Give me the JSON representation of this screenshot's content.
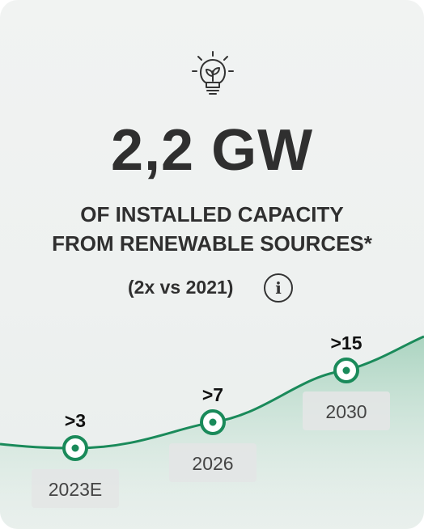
{
  "headline": "2,2 GW",
  "subtitle_line1": "OF INSTALLED CAPACITY",
  "subtitle_line2": "FROM RENEWABLE SOURCES*",
  "comparison": "(2x vs 2021)",
  "icons": {
    "top": "lightbulb-leaf-icon",
    "info": "info-icon"
  },
  "colors": {
    "accent": "#1a8a5a",
    "area_top": "#a9d3be",
    "area_bottom": "#e6f2ec",
    "label_bg": "#e3e6e5"
  },
  "chart_data": {
    "type": "line",
    "unit": "GW",
    "categories": [
      "2023E",
      "2026",
      "2030"
    ],
    "values": [
      3,
      7,
      15
    ],
    "value_labels": [
      ">3",
      ">7",
      ">15"
    ],
    "area_fill": true,
    "grid": false
  }
}
